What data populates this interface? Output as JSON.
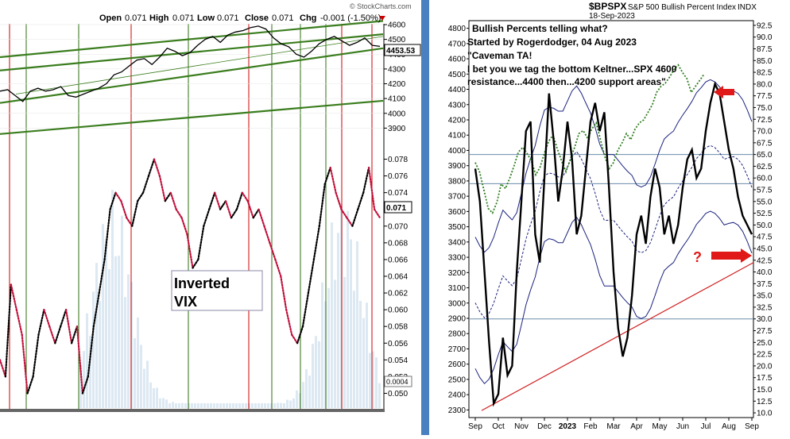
{
  "left": {
    "watermark": "© StockCharts.com",
    "ohlc": {
      "open_label": "Open",
      "open": "0.071",
      "high_label": "High",
      "high": "0.071",
      "low_label": "Low",
      "low": "0.071",
      "close_label": "Close",
      "close": "0.071",
      "chg_label": "Chg",
      "chg": "-0.001 (-1.50%)"
    },
    "price_badge": "4453.53",
    "vix_badge": "0.071",
    "bottom_badge": "0.0004",
    "annotation_line1": "Inverted",
    "annotation_line2": "VIX",
    "colors": {
      "price": "#000000",
      "channel": "#3a7d1e",
      "red_vline": "#cc0000",
      "green_vline": "#2e6e10",
      "vix_up": "#000000",
      "vix_down": "#c0103a",
      "volume": "#dce8f2",
      "annotation": "#1a1a7a"
    }
  },
  "right": {
    "title_symbol": "$BPSPX",
    "title_desc": "S&P 500 Bullish Percent Index",
    "title_exchange": "INDX",
    "date": "18-Sep-2023",
    "annotation_lines": [
      "Bullish Percents telling what?",
      "Started by Rogerdodger, 04 Aug 2023",
      "\"Caveman TA!",
      "I bet you we tag the bottom Keltner...SPX 4600",
      "resistance...4400 then...4200 support areas\""
    ],
    "question_mark": "?",
    "x_labels": [
      "Sep",
      "Oct",
      "Nov",
      "Dec",
      "2023",
      "Feb",
      "Mar",
      "Apr",
      "May",
      "Jun",
      "Jul",
      "Aug",
      "Sep"
    ],
    "colors": {
      "bpspx": "#000000",
      "spx": "#2e7d1e",
      "keltner": "#1a237e",
      "trend": "#d02020",
      "arrow": "#e01818",
      "hline": "#6a8ca8"
    }
  },
  "chart_data": [
    {
      "type": "line",
      "left_axis": {
        "ticks": [
          "4600",
          "4500",
          "4400",
          "4300",
          "4200",
          "4100",
          "4000",
          "3900"
        ],
        "range": [
          3800,
          4600
        ]
      },
      "right_axis": {
        "ticks": [
          "0.078",
          "0.076",
          "0.074",
          "0.072",
          "0.070",
          "0.068",
          "0.066",
          "0.064",
          "0.062",
          "0.060",
          "0.058",
          "0.056",
          "0.054",
          "0.052",
          "0.050"
        ],
        "range": [
          0.049,
          0.079
        ]
      },
      "price_series": [
        4150,
        4160,
        4120,
        4080,
        4150,
        4170,
        4150,
        4160,
        4180,
        4120,
        4110,
        4130,
        4150,
        4170,
        4200,
        4260,
        4280,
        4320,
        4360,
        4370,
        4330,
        4380,
        4440,
        4420,
        4390,
        4410,
        4460,
        4500,
        4520,
        4480,
        4530,
        4550,
        4560,
        4580,
        4590,
        4570,
        4510,
        4470,
        4450,
        4400,
        4380,
        4420,
        4470,
        4500,
        4520,
        4490,
        4460,
        4480,
        4510,
        4460,
        4453
      ],
      "vix_series": [
        0.054,
        0.052,
        0.063,
        0.06,
        0.057,
        0.05,
        0.052,
        0.057,
        0.06,
        0.058,
        0.056,
        0.058,
        0.06,
        0.056,
        0.058,
        0.05,
        0.052,
        0.058,
        0.062,
        0.066,
        0.072,
        0.074,
        0.073,
        0.071,
        0.07,
        0.073,
        0.074,
        0.076,
        0.078,
        0.076,
        0.073,
        0.074,
        0.072,
        0.071,
        0.069,
        0.065,
        0.066,
        0.07,
        0.072,
        0.074,
        0.072,
        0.073,
        0.071,
        0.072,
        0.074,
        0.073,
        0.071,
        0.072,
        0.07,
        0.068,
        0.066,
        0.064,
        0.06,
        0.057,
        0.056,
        0.058,
        0.062,
        0.066,
        0.07,
        0.075,
        0.077,
        0.074,
        0.072,
        0.071,
        0.07,
        0.072,
        0.074,
        0.077,
        0.072,
        0.071
      ]
    },
    {
      "type": "line",
      "x_labels": [
        "Sep",
        "Oct",
        "Nov",
        "Dec",
        "2023",
        "Feb",
        "Mar",
        "Apr",
        "May",
        "Jun",
        "Jul",
        "Aug",
        "Sep"
      ],
      "spx_axis": {
        "ticks": [
          "4800",
          "4700",
          "4600",
          "4500",
          "4400",
          "4300",
          "4200",
          "4100",
          "4000",
          "3900",
          "3800",
          "3700",
          "3600",
          "3500",
          "3400",
          "3300",
          "3200",
          "3100",
          "3000",
          "2900",
          "2800",
          "2700",
          "2600",
          "2500",
          "2400",
          "2300"
        ],
        "range": [
          2250,
          4850
        ]
      },
      "bp_axis": {
        "ticks": [
          "92.5",
          "90.0",
          "87.5",
          "85.0",
          "82.5",
          "80.0",
          "77.5",
          "75.0",
          "72.5",
          "70.0",
          "67.5",
          "65.0",
          "62.5",
          "60.0",
          "57.5",
          "55.0",
          "52.5",
          "50.0",
          "47.5",
          "45.0",
          "42.5",
          "40.0",
          "37.5",
          "35.0",
          "32.5",
          "30.0",
          "27.5",
          "25.0",
          "22.5",
          "20.0",
          "17.5",
          "15.0",
          "12.5",
          "10.0"
        ],
        "range": [
          9.0,
          93.5
        ]
      },
      "horizontal_levels_bp": [
        65.0,
        58.8,
        30.0
      ],
      "bpspx_series": [
        62,
        55,
        40,
        25,
        12,
        14,
        26,
        18,
        20,
        40,
        55,
        70,
        72,
        48,
        42,
        60,
        78,
        68,
        55,
        62,
        72,
        64,
        48,
        52,
        62,
        72,
        76,
        70,
        74,
        58,
        40,
        28,
        22,
        26,
        35,
        48,
        52,
        46,
        56,
        62,
        58,
        48,
        52,
        46,
        50,
        58,
        64,
        66,
        60,
        62,
        70,
        76,
        80,
        78,
        72,
        66,
        62,
        56,
        52,
        50,
        48
      ],
      "spx_series": [
        3920,
        3860,
        3740,
        3620,
        3590,
        3660,
        3780,
        3750,
        3820,
        3900,
        3990,
        4020,
        3980,
        3930,
        3840,
        3890,
        3980,
        4060,
        4100,
        4010,
        3930,
        3860,
        3940,
        4020,
        4110,
        4130,
        4080,
        4140,
        4180,
        4070,
        3960,
        3880,
        3920,
        4000,
        4050,
        4110,
        4070,
        4140,
        4180,
        4200,
        4250,
        4300,
        4380,
        4420,
        4440,
        4480,
        4530,
        4560,
        4510,
        4470,
        4380,
        4420,
        4460,
        4500
      ],
      "trendline_bp": [
        [
          0,
          10.5
        ],
        [
          1,
          42.0
        ]
      ]
    }
  ]
}
